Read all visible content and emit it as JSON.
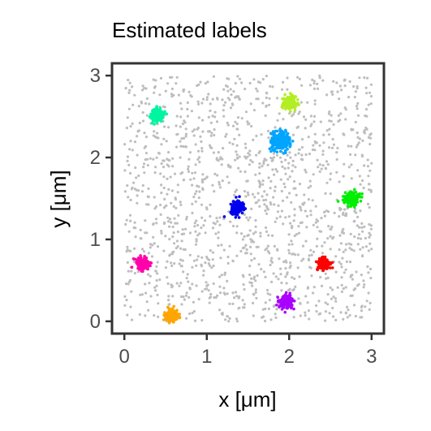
{
  "chart_data": {
    "type": "scatter",
    "title": "Estimated labels",
    "xlabel": "x [μm]",
    "ylabel": "y [μm]",
    "xlim": [
      -0.15,
      3.15
    ],
    "ylim": [
      -0.15,
      3.15
    ],
    "xticks": [
      0,
      1,
      2,
      3
    ],
    "yticks": [
      0,
      1,
      2,
      3
    ],
    "xtick_labels": [
      "0",
      "1",
      "2",
      "3"
    ],
    "ytick_labels": [
      "0",
      "1",
      "2",
      "3"
    ],
    "grid": false,
    "legend": "none",
    "background_points": {
      "color": "#bebebe",
      "distribution": "uniform",
      "x_range": [
        0,
        3
      ],
      "y_range": [
        0,
        3
      ]
    },
    "clusters": [
      {
        "center": [
          0.4,
          2.52
        ],
        "color": "#00f5a0"
      },
      {
        "center": [
          2.0,
          2.67
        ],
        "color": "#b2ee22"
      },
      {
        "center": [
          1.9,
          2.2
        ],
        "color": "#00a5ff"
      },
      {
        "center": [
          1.37,
          1.39
        ],
        "color": "#0000ee"
      },
      {
        "center": [
          2.76,
          1.5
        ],
        "color": "#00ee00"
      },
      {
        "center": [
          0.22,
          0.7
        ],
        "color": "#ff00aa"
      },
      {
        "center": [
          2.42,
          0.7
        ],
        "color": "#ff0000"
      },
      {
        "center": [
          1.97,
          0.24
        ],
        "color": "#aa00ff"
      },
      {
        "center": [
          0.58,
          0.07
        ],
        "color": "#ffa500"
      }
    ]
  }
}
